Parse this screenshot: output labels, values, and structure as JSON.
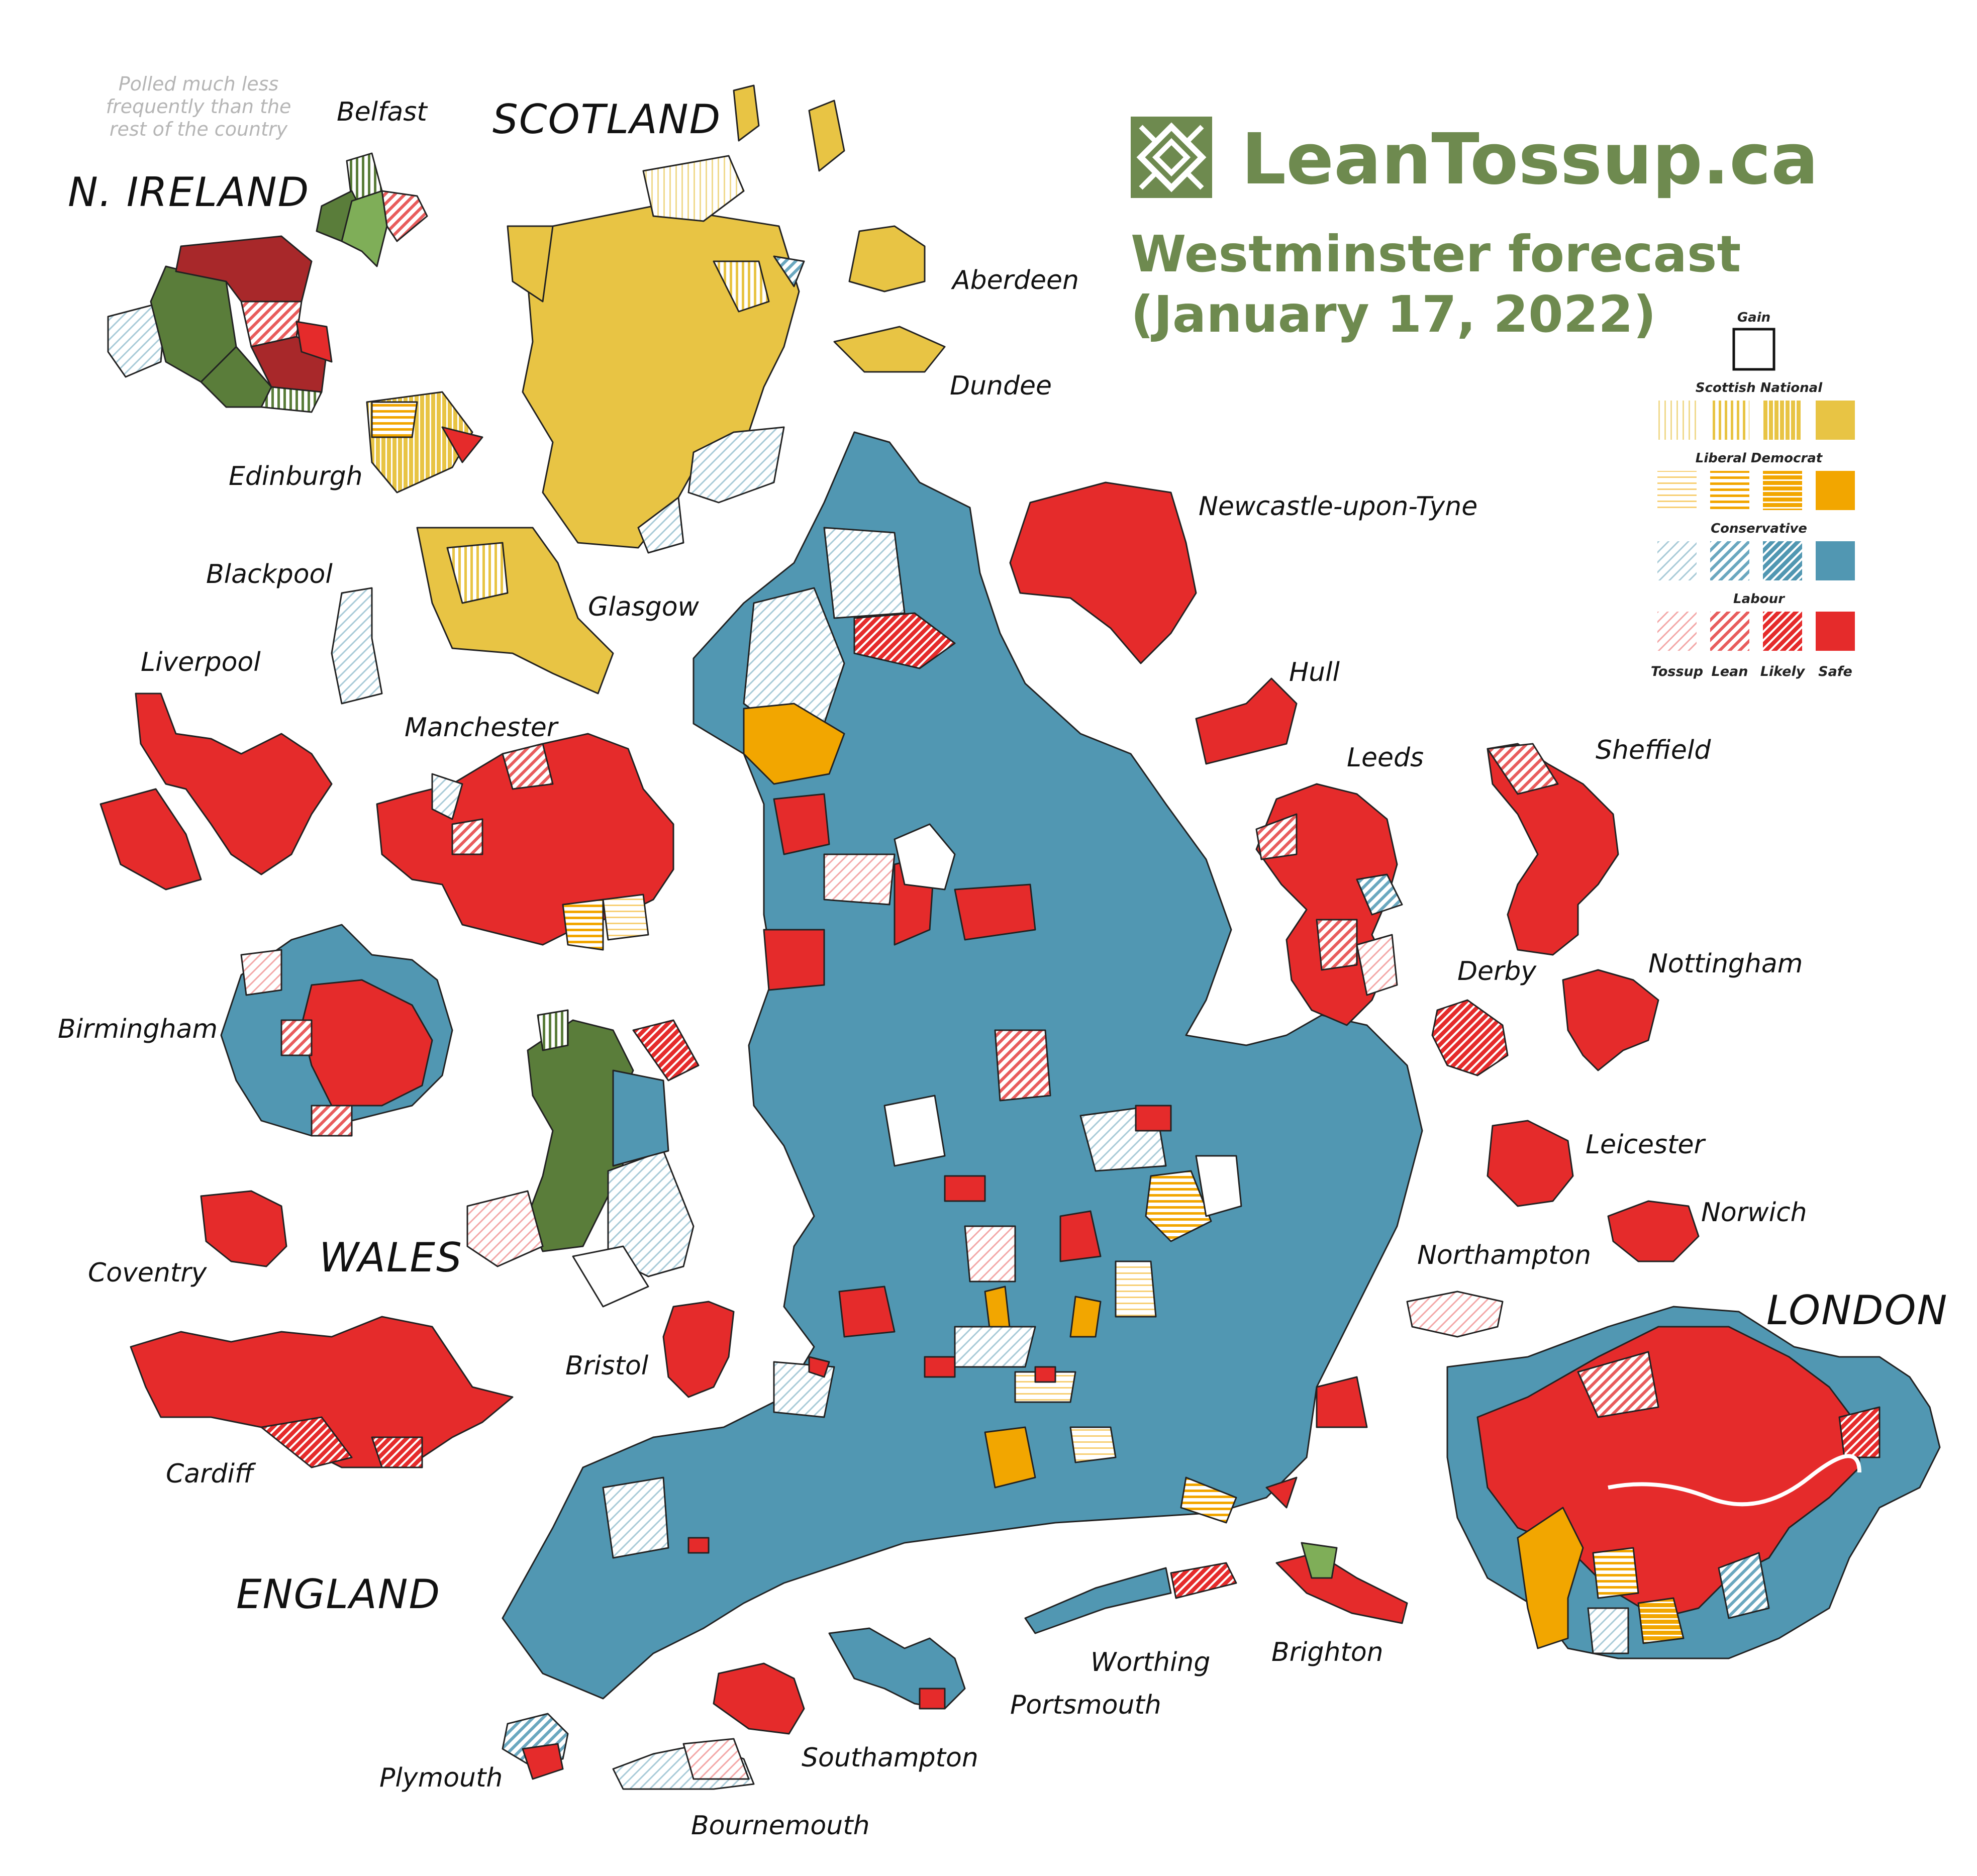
{
  "brand": {
    "site": "LeanTossup.ca",
    "title_line1": "Westminster forecast",
    "title_line2": "(January 17, 2022)"
  },
  "note": {
    "line1": "Polled much less",
    "line2": "frequently than the",
    "line3": "rest of the country"
  },
  "regions": {
    "scotland": "SCOTLAND",
    "n_ireland": "N. IRELAND",
    "wales": "WALES",
    "england": "ENGLAND",
    "london": "LONDON"
  },
  "cities": {
    "belfast": "Belfast",
    "aberdeen": "Aberdeen",
    "dundee": "Dundee",
    "edinburgh": "Edinburgh",
    "glasgow": "Glasgow",
    "blackpool": "Blackpool",
    "newcastle": "Newcastle-upon-Tyne",
    "liverpool": "Liverpool",
    "hull": "Hull",
    "manchester": "Manchester",
    "leeds": "Leeds",
    "sheffield": "Sheffield",
    "derby": "Derby",
    "nottingham": "Nottingham",
    "birmingham": "Birmingham",
    "leicester": "Leicester",
    "norwich": "Norwich",
    "northampton": "Northampton",
    "coventry": "Coventry",
    "bristol": "Bristol",
    "cardiff": "Cardiff",
    "worthing": "Worthing",
    "brighton": "Brighton",
    "portsmouth": "Portsmouth",
    "plymouth": "Plymouth",
    "southampton": "Southampton",
    "bournemouth": "Bournemouth"
  },
  "legend": {
    "gain": "Gain",
    "parties": [
      {
        "name": "Scottish National",
        "color": "#e8c444"
      },
      {
        "name": "Liberal Democrat",
        "color": "#f2a600"
      },
      {
        "name": "Conservative",
        "color": "#5197b2"
      },
      {
        "name": "Labour",
        "color": "#e52b2b"
      }
    ],
    "categories": [
      "Tossup",
      "Lean",
      "Likely",
      "Safe"
    ]
  },
  "colors": {
    "labour": "#e52b2b",
    "labour_dark": "#a8282a",
    "conservative": "#5197b2",
    "snp": "#e8c444",
    "libdem": "#f2a600",
    "plaid": "#5a7d3a",
    "plaid_light": "#7fae58",
    "brand": "#6e8a4f"
  }
}
